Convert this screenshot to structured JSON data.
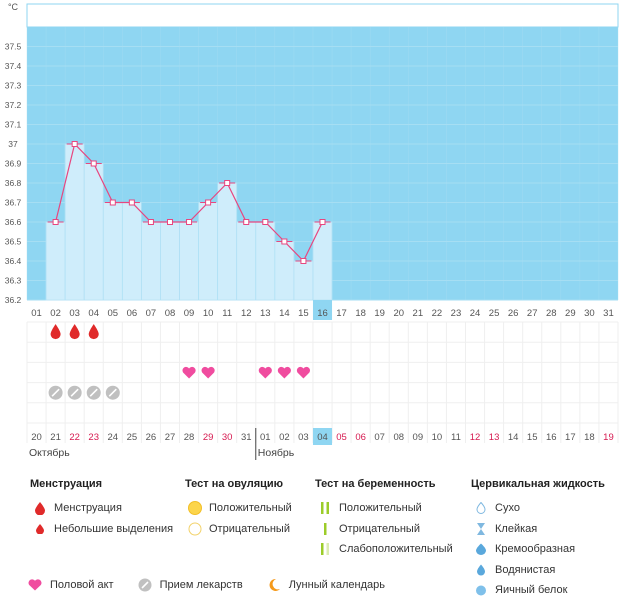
{
  "chart_data": {
    "type": "line",
    "y_unit": "°C",
    "ylim": [
      36.2,
      37.6
    ],
    "y_ticks": [
      "36.2",
      "36.3",
      "36.4",
      "36.5",
      "36.6",
      "36.7",
      "36.8",
      "36.9",
      "37",
      "37.1",
      "37.2",
      "37.3",
      "37.4",
      "37.5"
    ],
    "cycle_days": [
      "01",
      "02",
      "03",
      "04",
      "05",
      "06",
      "07",
      "08",
      "09",
      "10",
      "11",
      "12",
      "13",
      "14",
      "15",
      "16",
      "17",
      "18",
      "19",
      "20",
      "21",
      "22",
      "23",
      "24",
      "25",
      "26",
      "27",
      "28",
      "29",
      "30",
      "31"
    ],
    "current_day": "16",
    "temperatures": [
      null,
      36.6,
      37.0,
      36.9,
      36.7,
      36.7,
      36.6,
      36.6,
      36.6,
      36.7,
      36.8,
      36.6,
      36.6,
      36.5,
      36.4,
      36.6
    ],
    "menstruation_days": [
      "02",
      "03",
      "04"
    ],
    "intercourse_days": [
      "09",
      "10",
      "13",
      "14",
      "15"
    ],
    "medication_days": [
      "02",
      "03",
      "04",
      "05"
    ],
    "dates": [
      "20",
      "21",
      "22",
      "23",
      "24",
      "25",
      "26",
      "27",
      "28",
      "29",
      "30",
      "31",
      "01",
      "02",
      "03",
      "04",
      "05",
      "06",
      "07",
      "08",
      "09",
      "10",
      "11",
      "12",
      "13",
      "14",
      "15",
      "16",
      "17",
      "18",
      "19"
    ],
    "weekend_dates_idx": [
      2,
      3,
      9,
      10,
      16,
      17,
      23,
      24,
      30
    ],
    "current_date": "04",
    "months": [
      {
        "label": "Октябрь",
        "start_idx": 0
      },
      {
        "label": "Ноябрь",
        "start_idx": 12
      }
    ],
    "colors": {
      "band": "#8fd6f2",
      "bar_fill": "#cfedfb",
      "line": "#e8467f",
      "weekend": "#d61a50",
      "drop": "#e02a2a",
      "heart": "#f04c9f",
      "pill": "#c0c0c0",
      "today_bg": "#8fd6f2"
    }
  },
  "legend": {
    "menstruation": {
      "title": "Менструация",
      "items": [
        "Менструация",
        "Небольшие выделения"
      ]
    },
    "ovulation": {
      "title": "Тест на овуляцию",
      "items": [
        "Положительный",
        "Отрицательный"
      ]
    },
    "pregnancy": {
      "title": "Тест на беременность",
      "items": [
        "Положительный",
        "Отрицательный",
        "Слабоположительный"
      ]
    },
    "cervical": {
      "title": "Цервикальная жидкость",
      "items": [
        "Сухо",
        "Клейкая",
        "Кремообразная",
        "Водянистая",
        "Яичный белок"
      ]
    }
  },
  "bottom_legend": {
    "items": [
      "Половой акт",
      "Прием лекарств",
      "Лунный календарь"
    ]
  }
}
